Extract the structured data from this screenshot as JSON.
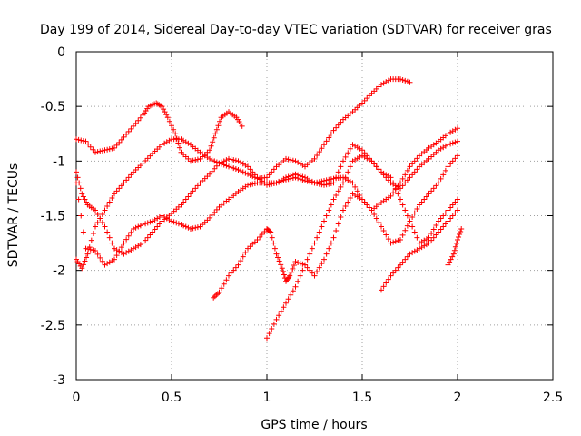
{
  "chart_data": {
    "type": "scatter",
    "title": "Day 199 of 2014, Sidereal Day-to-day VTEC variation (SDTVAR) for receiver gras",
    "xlabel": "GPS time / hours",
    "ylabel": "SDTVAR / TECUs",
    "xlim": [
      0,
      2.5
    ],
    "ylim": [
      -3,
      0
    ],
    "xticks": [
      "0",
      "0.5",
      "1",
      "1.5",
      "2",
      "2.5"
    ],
    "yticks": [
      "0",
      "-0.5",
      "-1",
      "-1.5",
      "-2",
      "-2.5",
      "-3"
    ],
    "x_tick_values": [
      0,
      0.5,
      1,
      1.5,
      2,
      2.5
    ],
    "y_tick_values": [
      0,
      -0.5,
      -1,
      -1.5,
      -2,
      -2.5,
      -3
    ],
    "grid": true,
    "legend": "none",
    "marker": "+",
    "marker_color": "#ff0000",
    "series": [
      {
        "x": [
          0,
          0.05,
          0.1,
          0.15,
          0.2,
          0.25,
          0.3,
          0.35,
          0.38,
          0.42,
          0.45,
          0.48,
          0.52,
          0.55,
          0.6,
          0.65,
          0.7,
          0.73,
          0.76,
          0.8,
          0.84,
          0.87
        ],
        "y": [
          -0.8,
          -0.82,
          -0.92,
          -0.9,
          -0.88,
          -0.78,
          -0.68,
          -0.58,
          -0.5,
          -0.47,
          -0.5,
          -0.6,
          -0.75,
          -0.92,
          -1.0,
          -0.98,
          -0.9,
          -0.75,
          -0.6,
          -0.55,
          -0.6,
          -0.68
        ]
      },
      {
        "x": [
          0,
          0.03,
          0.06,
          0.1,
          0.15,
          0.2,
          0.25,
          0.3,
          0.35,
          0.4,
          0.45,
          0.5,
          0.55,
          0.6,
          0.65,
          0.7,
          0.75,
          0.8,
          0.85,
          0.9,
          0.95,
          1.0,
          1.05,
          1.1,
          1.15,
          1.2,
          1.25,
          1.3,
          1.35,
          1.4,
          1.45,
          1.5,
          1.55,
          1.6,
          1.65,
          1.7,
          1.75
        ],
        "y": [
          -1.9,
          -1.98,
          -1.85,
          -1.6,
          -1.45,
          -1.3,
          -1.2,
          -1.1,
          -1.02,
          -0.93,
          -0.85,
          -0.8,
          -0.8,
          -0.85,
          -0.92,
          -0.98,
          -1.02,
          -1.05,
          -1.08,
          -1.12,
          -1.16,
          -1.15,
          -1.05,
          -0.98,
          -1.0,
          -1.05,
          -0.98,
          -0.85,
          -0.72,
          -0.62,
          -0.55,
          -0.47,
          -0.38,
          -0.3,
          -0.25,
          -0.25,
          -0.28
        ]
      },
      {
        "x": [
          0,
          0.03,
          0.06,
          0.1,
          0.15,
          0.2,
          0.25,
          0.3,
          0.35,
          0.4,
          0.45,
          0.5,
          0.55,
          0.6,
          0.65,
          0.7,
          0.75,
          0.8,
          0.85,
          0.9,
          0.95,
          1.0,
          1.05,
          1.1,
          1.15,
          1.2,
          1.25,
          1.3,
          1.35,
          1.4,
          1.45,
          1.5,
          1.55,
          1.6,
          1.65,
          1.7,
          1.75,
          1.8,
          1.85,
          1.9,
          1.95,
          2.0
        ],
        "y": [
          -1.1,
          -1.3,
          -1.4,
          -1.45,
          -1.6,
          -1.8,
          -1.85,
          -1.8,
          -1.75,
          -1.65,
          -1.55,
          -1.48,
          -1.4,
          -1.3,
          -1.2,
          -1.12,
          -1.02,
          -0.98,
          -1.0,
          -1.05,
          -1.15,
          -1.22,
          -1.2,
          -1.15,
          -1.12,
          -1.15,
          -1.2,
          -1.22,
          -1.2,
          -1.0,
          -0.85,
          -0.9,
          -1.0,
          -1.1,
          -1.2,
          -1.25,
          -1.15,
          -1.05,
          -0.98,
          -0.9,
          -0.85,
          -0.82
        ]
      },
      {
        "x": [
          0,
          0.05,
          0.1,
          0.15,
          0.2,
          0.25,
          0.3,
          0.35,
          0.4,
          0.45,
          0.5,
          0.55,
          0.6,
          0.65,
          0.7,
          0.75,
          0.8,
          0.85,
          0.9,
          0.95,
          1.0,
          1.05,
          1.1,
          1.15,
          1.2,
          1.25,
          1.3,
          1.35,
          1.4,
          1.45,
          1.5,
          1.55,
          1.6,
          1.65,
          1.7,
          1.75,
          1.8,
          1.85,
          1.9,
          1.95,
          2.0
        ],
        "y": [
          -1.2,
          -1.8,
          -1.82,
          -1.95,
          -1.9,
          -1.75,
          -1.62,
          -1.58,
          -1.55,
          -1.5,
          -1.55,
          -1.58,
          -1.62,
          -1.6,
          -1.52,
          -1.42,
          -1.35,
          -1.28,
          -1.22,
          -1.2,
          -1.2,
          -1.2,
          -1.17,
          -1.15,
          -1.18,
          -1.2,
          -1.18,
          -1.16,
          -1.15,
          -1.2,
          -1.35,
          -1.45,
          -1.38,
          -1.32,
          -1.2,
          -1.05,
          -0.95,
          -0.88,
          -0.82,
          -0.75,
          -0.7
        ]
      },
      {
        "x": [
          0.72,
          0.75,
          0.8,
          0.85,
          0.9,
          0.95,
          1.0,
          1.02,
          1.05,
          1.08,
          1.1,
          1.12,
          1.15,
          1.2,
          1.25,
          1.3,
          1.35,
          1.4,
          1.45,
          1.5,
          1.55,
          1.6,
          1.65,
          1.7,
          1.75,
          1.8,
          1.85,
          1.9,
          1.95,
          2.0
        ],
        "y": [
          -2.25,
          -2.2,
          -2.05,
          -1.95,
          -1.8,
          -1.72,
          -1.62,
          -1.65,
          -1.85,
          -1.98,
          -2.1,
          -2.05,
          -1.92,
          -1.95,
          -2.05,
          -1.9,
          -1.7,
          -1.45,
          -1.3,
          -1.35,
          -1.45,
          -1.6,
          -1.75,
          -1.72,
          -1.55,
          -1.4,
          -1.3,
          -1.2,
          -1.05,
          -0.95
        ]
      },
      {
        "x": [
          1.0,
          1.05,
          1.1,
          1.15,
          1.2,
          1.25,
          1.3,
          1.35,
          1.4,
          1.45,
          1.5,
          1.55,
          1.6,
          1.65,
          1.7,
          1.75,
          1.8,
          1.85,
          1.9,
          1.95,
          2.0
        ],
        "y": [
          -2.62,
          -2.45,
          -2.3,
          -2.15,
          -1.95,
          -1.75,
          -1.55,
          -1.35,
          -1.2,
          -1.0,
          -0.95,
          -1.0,
          -1.1,
          -1.15,
          -1.35,
          -1.55,
          -1.75,
          -1.7,
          -1.55,
          -1.45,
          -1.35
        ]
      },
      {
        "x": [
          1.6,
          1.65,
          1.7,
          1.75,
          1.8,
          1.85,
          1.9,
          1.95,
          2.0
        ],
        "y": [
          -2.18,
          -2.05,
          -1.95,
          -1.85,
          -1.8,
          -1.75,
          -1.65,
          -1.55,
          -1.45
        ]
      },
      {
        "x": [
          1.95,
          1.98,
          2.0,
          2.02
        ],
        "y": [
          -1.95,
          -1.85,
          -1.72,
          -1.62
        ]
      }
    ]
  }
}
